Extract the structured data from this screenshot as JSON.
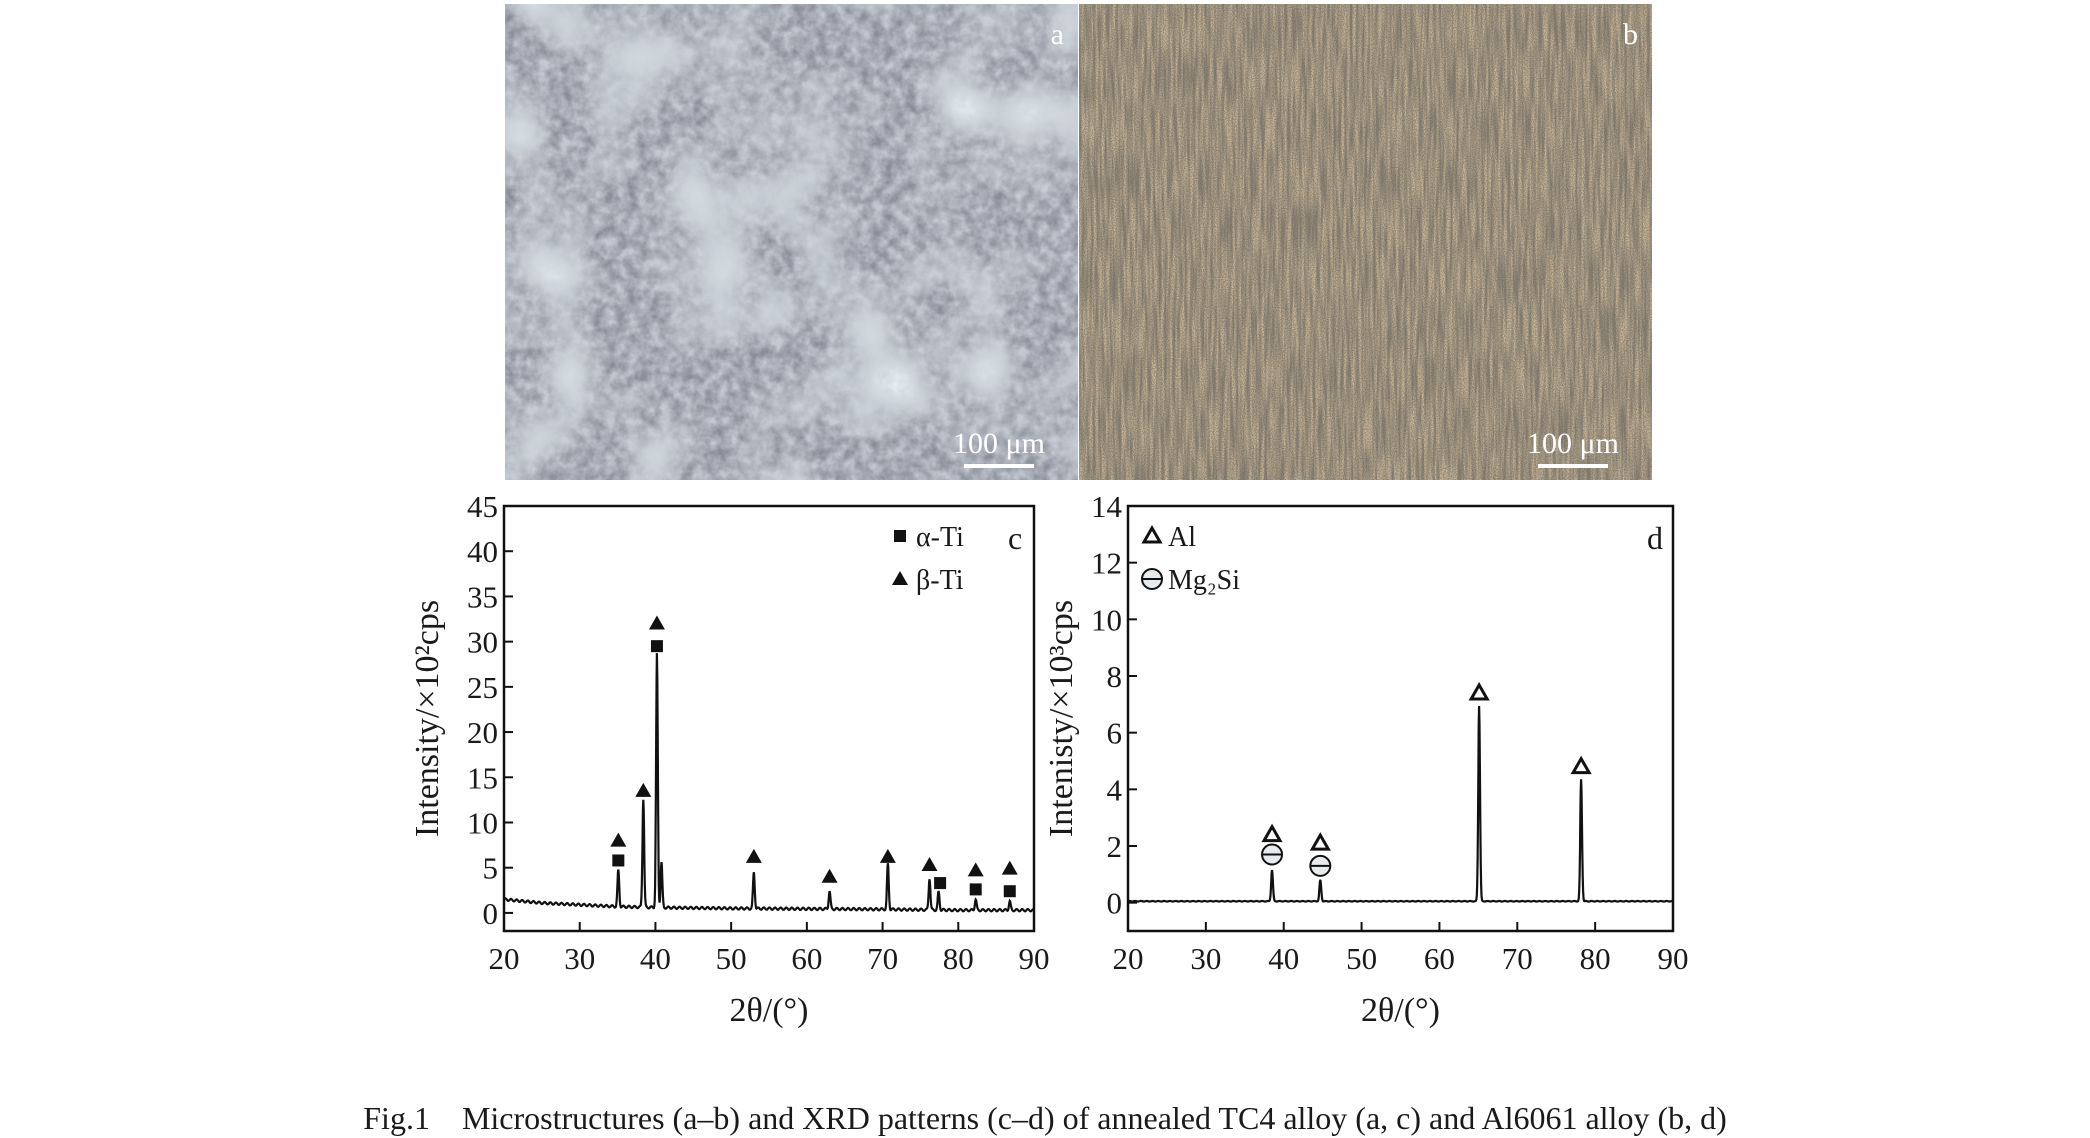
{
  "panels": {
    "a": {
      "letter": "a",
      "scale_bar": "100 μm"
    },
    "b": {
      "letter": "b",
      "scale_bar": "100 μm"
    }
  },
  "chart_data": [
    {
      "panel": "c",
      "type": "line",
      "xlabel": "2θ/(°)",
      "ylabel": "Intensity/×10²cps",
      "xlim": [
        20,
        90
      ],
      "ylim": [
        -2,
        45
      ],
      "xticks": [
        20,
        30,
        40,
        50,
        60,
        70,
        80,
        90
      ],
      "yticks": [
        0,
        5,
        10,
        15,
        20,
        25,
        30,
        35,
        40,
        45
      ],
      "legend": [
        {
          "marker": "square",
          "label": "α-Ti"
        },
        {
          "marker": "triangle",
          "label": "β-Ti"
        }
      ],
      "legend_position": "top-right",
      "baseline": {
        "x": [
          20,
          25,
          30,
          35,
          40,
          50,
          60,
          70,
          80,
          90
        ],
        "y": [
          1.5,
          1.1,
          0.9,
          0.7,
          0.6,
          0.5,
          0.45,
          0.4,
          0.3,
          0.3
        ]
      },
      "peaks": [
        {
          "x": 35.1,
          "y": 4.0
        },
        {
          "x": 38.4,
          "y": 12.0
        },
        {
          "x": 40.2,
          "y": 28.0
        },
        {
          "x": 40.8,
          "y": 5.0
        },
        {
          "x": 53.0,
          "y": 4.0
        },
        {
          "x": 63.0,
          "y": 2.0
        },
        {
          "x": 70.7,
          "y": 5.0
        },
        {
          "x": 76.2,
          "y": 3.5
        },
        {
          "x": 77.4,
          "y": 2.0
        },
        {
          "x": 82.3,
          "y": 1.2
        },
        {
          "x": 86.8,
          "y": 1.0
        }
      ],
      "markers": [
        {
          "x": 35.1,
          "y": 5.8,
          "type": "square"
        },
        {
          "x": 35.1,
          "y": 8.0,
          "type": "triangle"
        },
        {
          "x": 38.4,
          "y": 13.5,
          "type": "triangle"
        },
        {
          "x": 40.2,
          "y": 29.5,
          "type": "square"
        },
        {
          "x": 40.2,
          "y": 32.0,
          "type": "triangle"
        },
        {
          "x": 53.0,
          "y": 6.2,
          "type": "triangle"
        },
        {
          "x": 63.0,
          "y": 4.0,
          "type": "triangle"
        },
        {
          "x": 70.7,
          "y": 6.2,
          "type": "triangle"
        },
        {
          "x": 76.2,
          "y": 5.3,
          "type": "triangle"
        },
        {
          "x": 77.6,
          "y": 3.3,
          "type": "square"
        },
        {
          "x": 82.3,
          "y": 2.6,
          "type": "square"
        },
        {
          "x": 82.3,
          "y": 4.7,
          "type": "triangle"
        },
        {
          "x": 86.8,
          "y": 2.4,
          "type": "square"
        },
        {
          "x": 86.8,
          "y": 4.9,
          "type": "triangle"
        }
      ]
    },
    {
      "panel": "d",
      "type": "line",
      "xlabel": "2θ/(°)",
      "ylabel": "Intenisty/×10³cps",
      "xlim": [
        20,
        90
      ],
      "ylim": [
        -1,
        14
      ],
      "xticks": [
        20,
        30,
        40,
        50,
        60,
        70,
        80,
        90
      ],
      "yticks": [
        0,
        2,
        4,
        6,
        8,
        10,
        12,
        14
      ],
      "legend": [
        {
          "marker": "triangle-open",
          "label": "Al"
        },
        {
          "marker": "circle-plus",
          "label": "Mg₂Si"
        }
      ],
      "legend_position": "top-left",
      "baseline": {
        "x": [
          20,
          90
        ],
        "y": [
          0.05,
          0.05
        ]
      },
      "peaks": [
        {
          "x": 38.5,
          "y": 1.1
        },
        {
          "x": 44.7,
          "y": 0.75
        },
        {
          "x": 65.1,
          "y": 6.9
        },
        {
          "x": 78.2,
          "y": 4.3
        }
      ],
      "markers": [
        {
          "x": 38.5,
          "y": 2.4,
          "type": "triangle-open"
        },
        {
          "x": 38.5,
          "y": 1.7,
          "type": "circle-plus"
        },
        {
          "x": 44.7,
          "y": 2.1,
          "type": "triangle-open"
        },
        {
          "x": 44.7,
          "y": 1.3,
          "type": "circle-plus"
        },
        {
          "x": 65.1,
          "y": 7.4,
          "type": "triangle-open"
        },
        {
          "x": 78.2,
          "y": 4.8,
          "type": "triangle-open"
        }
      ]
    }
  ],
  "caption": "Fig.1    Microstructures (a–b) and XRD patterns (c–d) of annealed TC4 alloy (a, c) and Al6061 alloy (b, d)"
}
